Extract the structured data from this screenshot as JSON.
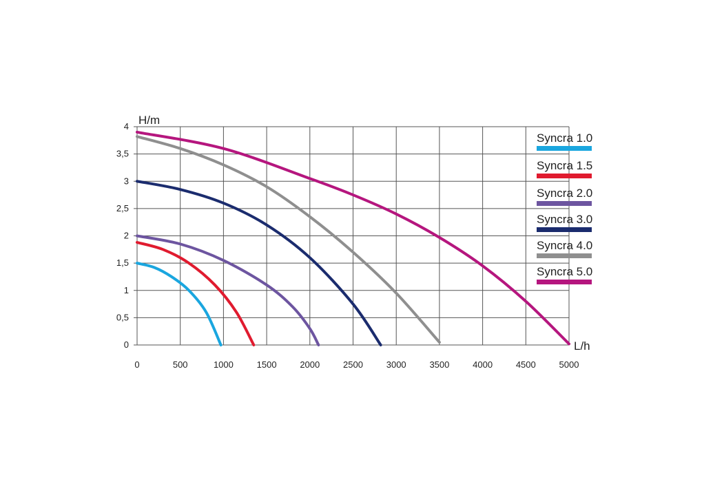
{
  "chart_data": {
    "type": "line",
    "xlabel": "L/h",
    "ylabel": "H/m",
    "xlim": [
      0,
      5000
    ],
    "ylim": [
      0,
      4
    ],
    "x_ticks": [
      "0",
      "500",
      "1000",
      "1500",
      "2000",
      "2500",
      "3000",
      "3500",
      "4000",
      "4500",
      "5000"
    ],
    "y_ticks": [
      "0",
      "0,5",
      "1",
      "1,5",
      "2",
      "2,5",
      "3",
      "3,5",
      "4"
    ],
    "grid": true,
    "legend_position": "right",
    "series": [
      {
        "name": "Syncra 1.0",
        "color": "#1aa6df",
        "points": [
          [
            0,
            1.5
          ],
          [
            200,
            1.42
          ],
          [
            400,
            1.25
          ],
          [
            600,
            1.0
          ],
          [
            800,
            0.6
          ],
          [
            970,
            0.0
          ]
        ]
      },
      {
        "name": "Syncra 1.5",
        "color": "#e01b2f",
        "points": [
          [
            0,
            1.88
          ],
          [
            300,
            1.75
          ],
          [
            600,
            1.5
          ],
          [
            900,
            1.1
          ],
          [
            1150,
            0.6
          ],
          [
            1350,
            0.0
          ]
        ]
      },
      {
        "name": "Syncra 2.0",
        "color": "#6d55a0",
        "points": [
          [
            0,
            2.0
          ],
          [
            500,
            1.85
          ],
          [
            1000,
            1.55
          ],
          [
            1500,
            1.1
          ],
          [
            1800,
            0.7
          ],
          [
            2000,
            0.3
          ],
          [
            2100,
            0.0
          ]
        ]
      },
      {
        "name": "Syncra 3.0",
        "color": "#1b2c6e",
        "points": [
          [
            0,
            3.0
          ],
          [
            500,
            2.85
          ],
          [
            1000,
            2.6
          ],
          [
            1500,
            2.2
          ],
          [
            2000,
            1.6
          ],
          [
            2500,
            0.75
          ],
          [
            2820,
            0.0
          ]
        ]
      },
      {
        "name": "Syncra 4.0",
        "color": "#8f8f8f",
        "points": [
          [
            0,
            3.82
          ],
          [
            500,
            3.6
          ],
          [
            1000,
            3.3
          ],
          [
            1500,
            2.9
          ],
          [
            2000,
            2.35
          ],
          [
            2500,
            1.7
          ],
          [
            3000,
            0.95
          ],
          [
            3500,
            0.05
          ]
        ]
      },
      {
        "name": "Syncra 5.0",
        "color": "#b5167e",
        "points": [
          [
            0,
            3.9
          ],
          [
            1000,
            3.6
          ],
          [
            2000,
            3.05
          ],
          [
            2500,
            2.75
          ],
          [
            3000,
            2.4
          ],
          [
            3500,
            1.97
          ],
          [
            4000,
            1.45
          ],
          [
            4500,
            0.8
          ],
          [
            5000,
            0.02
          ]
        ]
      }
    ]
  }
}
